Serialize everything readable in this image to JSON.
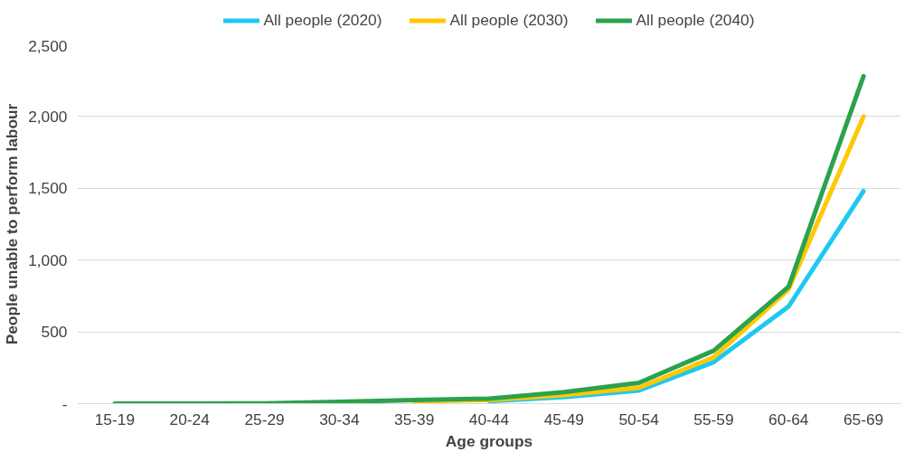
{
  "chart_data": {
    "type": "line",
    "xlabel": "Age groups",
    "ylabel": "People unable to perform labour",
    "categories": [
      "15-19",
      "20-24",
      "25-29",
      "30-34",
      "35-39",
      "40-44",
      "45-49",
      "50-54",
      "55-59",
      "60-64",
      "65-69"
    ],
    "series": [
      {
        "name": "All people (2020)",
        "color": "#1ec8f0",
        "values": [
          null,
          null,
          null,
          null,
          null,
          18,
          45,
          92,
          289,
          677,
          1480
        ]
      },
      {
        "name": "All people (2030)",
        "color": "#ffc800",
        "values": [
          null,
          null,
          null,
          null,
          16,
          25,
          60,
          110,
          323,
          796,
          2000
        ]
      },
      {
        "name": "All people (2040)",
        "color": "#2ba24c",
        "values": [
          0,
          0,
          2,
          12,
          25,
          35,
          80,
          145,
          369,
          815,
          2280
        ]
      }
    ],
    "ylim": [
      0,
      2500
    ],
    "yticks": [
      {
        "value": 0,
        "label": "-"
      },
      {
        "value": 500,
        "label": "500"
      },
      {
        "value": 1000,
        "label": "1,000"
      },
      {
        "value": 1500,
        "label": "1,500"
      },
      {
        "value": 2000,
        "label": "2,000"
      },
      {
        "value": 2500,
        "label": "2,500"
      }
    ],
    "grid": "y",
    "legend": "top",
    "marker": "none",
    "line_style": "solid"
  }
}
